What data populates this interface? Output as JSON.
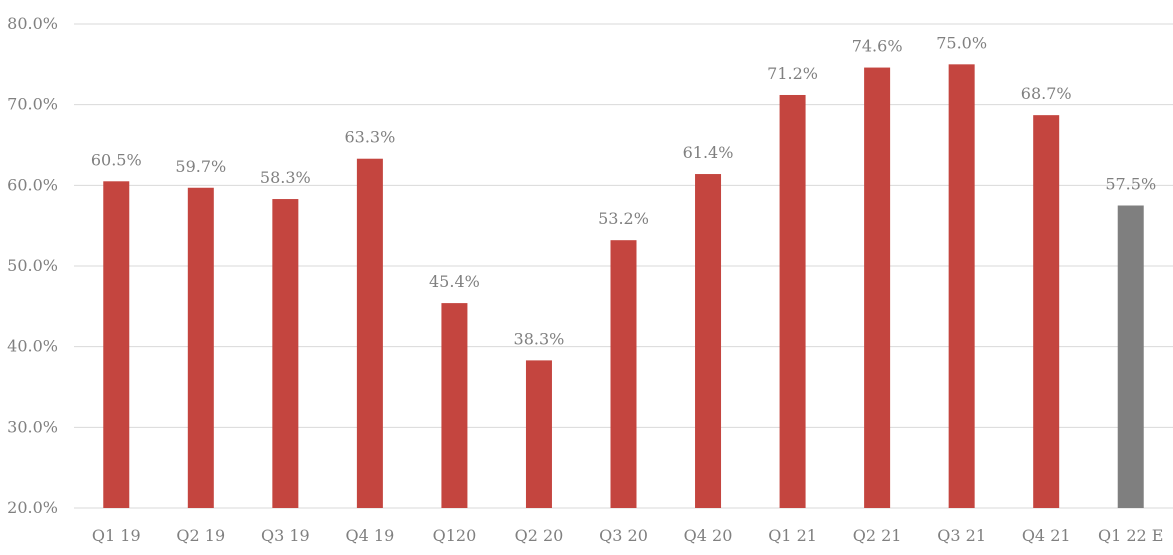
{
  "chart_data": {
    "type": "bar",
    "title": "",
    "xlabel": "",
    "ylabel": "",
    "ylim": [
      20,
      80
    ],
    "yticks": [
      20,
      30,
      40,
      50,
      60,
      70,
      80
    ],
    "ytick_labels": [
      "20.0%",
      "30.0%",
      "40.0%",
      "50.0%",
      "60.0%",
      "70.0%",
      "80.0%"
    ],
    "grid": true,
    "legend": "none",
    "categories": [
      "Q1 19",
      "Q2 19",
      "Q3 19",
      "Q4 19",
      "Q120",
      "Q2 20",
      "Q3 20",
      "Q4 20",
      "Q1 21",
      "Q2 21",
      "Q3 21",
      "Q4 21",
      "Q1 22 E"
    ],
    "values": [
      60.5,
      59.7,
      58.3,
      63.3,
      45.4,
      38.3,
      53.2,
      61.4,
      71.2,
      74.6,
      75.0,
      68.7,
      57.5
    ],
    "data_labels": [
      "60.5%",
      "59.7%",
      "58.3%",
      "63.3%",
      "45.4%",
      "38.3%",
      "53.2%",
      "61.4%",
      "71.2%",
      "74.6%",
      "75.0%",
      "68.7%",
      "57.5%"
    ],
    "bar_colors": [
      "#c4453f",
      "#c4453f",
      "#c4453f",
      "#c4453f",
      "#c4453f",
      "#c4453f",
      "#c4453f",
      "#c4453f",
      "#c4453f",
      "#c4453f",
      "#c4453f",
      "#c4453f",
      "#7f7f7f"
    ]
  }
}
